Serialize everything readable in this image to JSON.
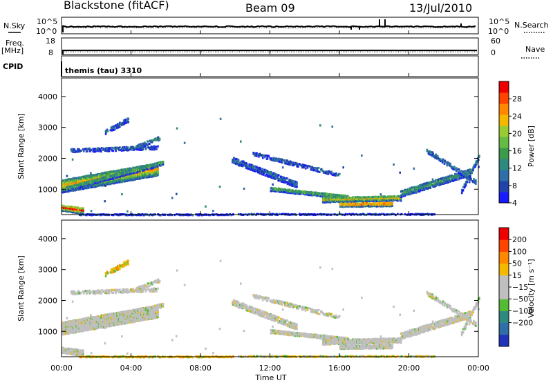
{
  "header": {
    "station": "Blackstone (fitACF)",
    "beam": "Beam 09",
    "date": "13/Jul/2010"
  },
  "strips": {
    "nsky_label": "N.Sky",
    "nsearch_label": "N.Search",
    "freq_label": "Freq.",
    "freq_unit": "[MHz]",
    "nave_label": "Nave",
    "cpid_label": "CPID",
    "cpid_text": "themis (tau) 3310",
    "noise_left_ticks": [
      "10^5",
      "10^0"
    ],
    "noise_right_ticks": [
      "10^5",
      "10^0"
    ],
    "freq_ticks": [
      "18",
      "8"
    ],
    "nave_ticks": [
      "60",
      "0"
    ]
  },
  "chart_data": [
    {
      "type": "heatmap",
      "panel": "power",
      "ylabel": "Slant Range [km]",
      "yticks": [
        "4000",
        "3000",
        "2000",
        "1000"
      ],
      "ylim": [
        180,
        4600
      ],
      "colorbar": {
        "label": "Power [dB]",
        "ticks": [
          "28",
          "24",
          "20",
          "16",
          "12",
          "8",
          "4"
        ],
        "colors": [
          "#1a1aff",
          "#2244aa",
          "#2f6ea6",
          "#2e8a7e",
          "#3d9a4a",
          "#66bb44",
          "#99cc33",
          "#f5b800",
          "#ff8800",
          "#ff4400",
          "#ee0000"
        ]
      }
    },
    {
      "type": "heatmap",
      "panel": "velocity",
      "ylabel": "Slant Range [km]",
      "yticks": [
        "4000",
        "3000",
        "2000",
        "1000"
      ],
      "ylim": [
        180,
        4600
      ],
      "colorbar": {
        "label": "Velocity [m s⁻¹]",
        "ticks": [
          "200",
          "100",
          "50",
          "15",
          "−15",
          "−50",
          "−100",
          "−200"
        ],
        "colors": [
          "#2233bb",
          "#2f6ea6",
          "#2e8a7e",
          "#55bb33",
          "#bfbfbf",
          "#bfbfbf",
          "#f5b800",
          "#ff8800",
          "#ff4400",
          "#ee0000"
        ]
      }
    }
  ],
  "xaxis": {
    "label": "Time UT",
    "ticks": [
      "00:00",
      "04:00",
      "08:00",
      "12:00",
      "16:00",
      "20:00",
      "00:00"
    ]
  }
}
